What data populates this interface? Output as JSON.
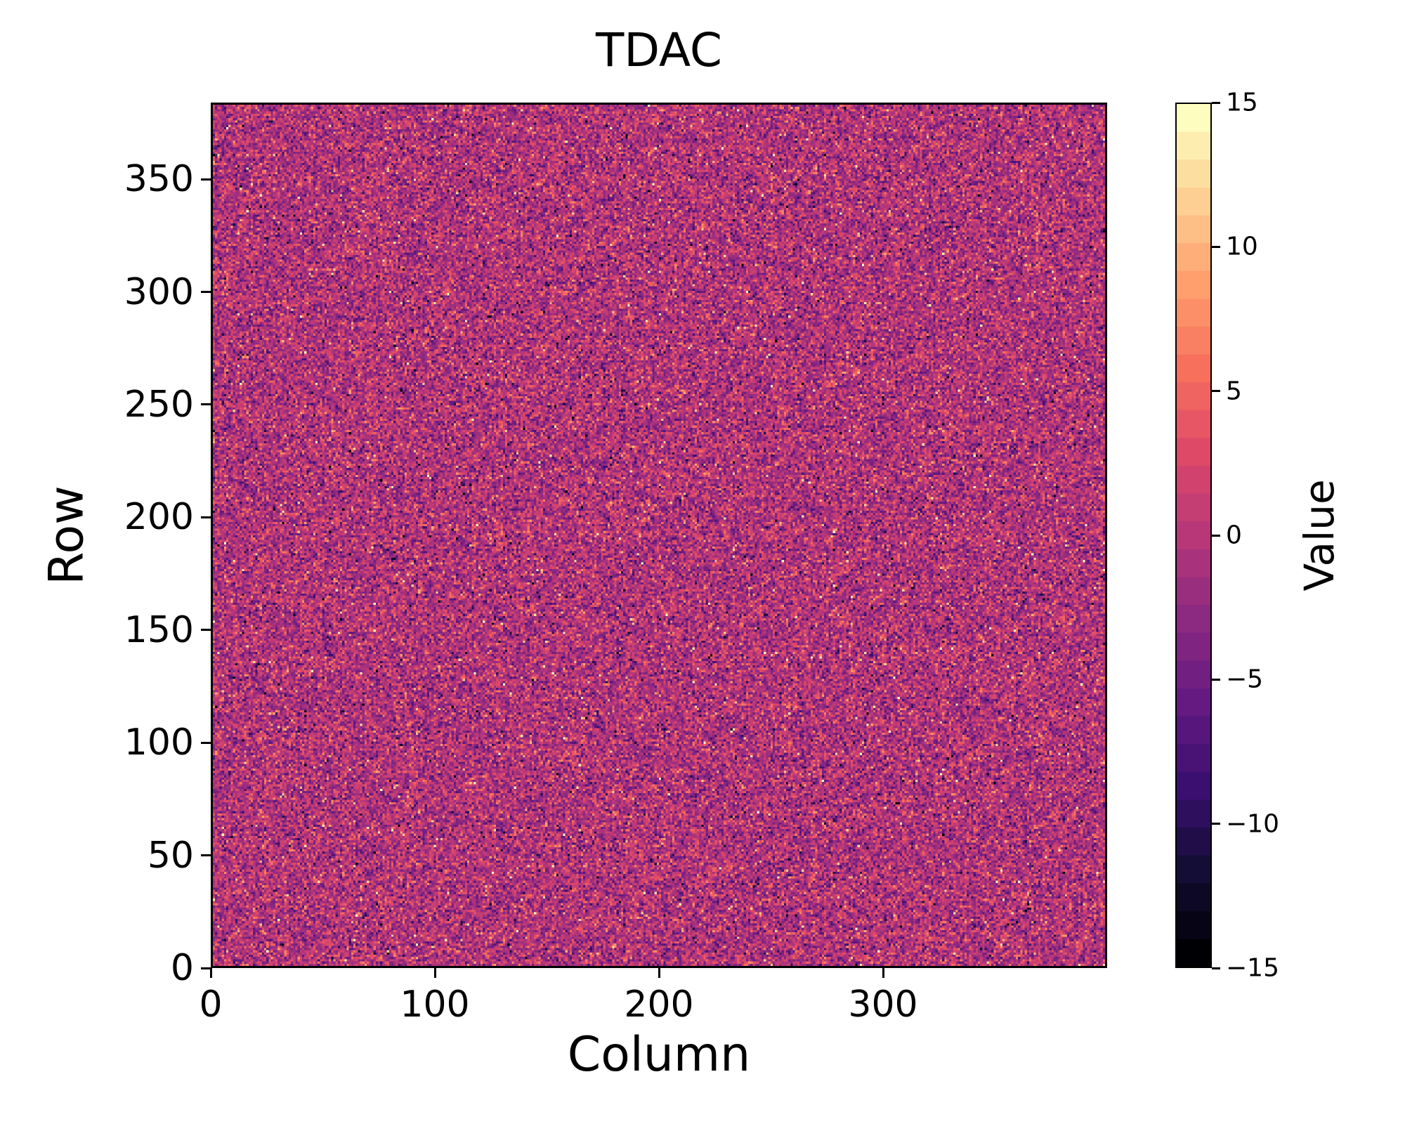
{
  "figure": {
    "background": "#ffffff",
    "text_color": "#000000"
  },
  "chart_data": {
    "type": "heatmap",
    "title": "TDAC",
    "xlabel": "Column",
    "ylabel": "Row",
    "colorbar_label": "Value",
    "x_range": [
      0,
      400
    ],
    "y_range": [
      0,
      384
    ],
    "grid_cols": 400,
    "grid_rows": 384,
    "xticks": [
      0,
      100,
      200,
      300
    ],
    "yticks": [
      0,
      50,
      100,
      150,
      200,
      250,
      300,
      350
    ],
    "colorbar_ticks": [
      15,
      10,
      5,
      0,
      -5,
      -10,
      -15
    ],
    "vmin": -15,
    "vmax": 15,
    "levels": 31,
    "grid": false,
    "legend": "none",
    "colormap": "magma",
    "colormap_stops": [
      {
        "t": 0.0,
        "color": "#000004"
      },
      {
        "t": 0.1,
        "color": "#140e36"
      },
      {
        "t": 0.2,
        "color": "#3b0f70"
      },
      {
        "t": 0.3,
        "color": "#641a80"
      },
      {
        "t": 0.4,
        "color": "#8c2981"
      },
      {
        "t": 0.5,
        "color": "#b73779"
      },
      {
        "t": 0.6,
        "color": "#de4968"
      },
      {
        "t": 0.7,
        "color": "#f7705c"
      },
      {
        "t": 0.8,
        "color": "#fe9f6d"
      },
      {
        "t": 0.9,
        "color": "#fecf92"
      },
      {
        "t": 1.0,
        "color": "#fcfdbf"
      }
    ],
    "distribution": {
      "type": "gaussian-integer-noise",
      "mean": -0.5,
      "std": 3.5,
      "outlier_fraction": 0.025
    },
    "seed": 42
  }
}
